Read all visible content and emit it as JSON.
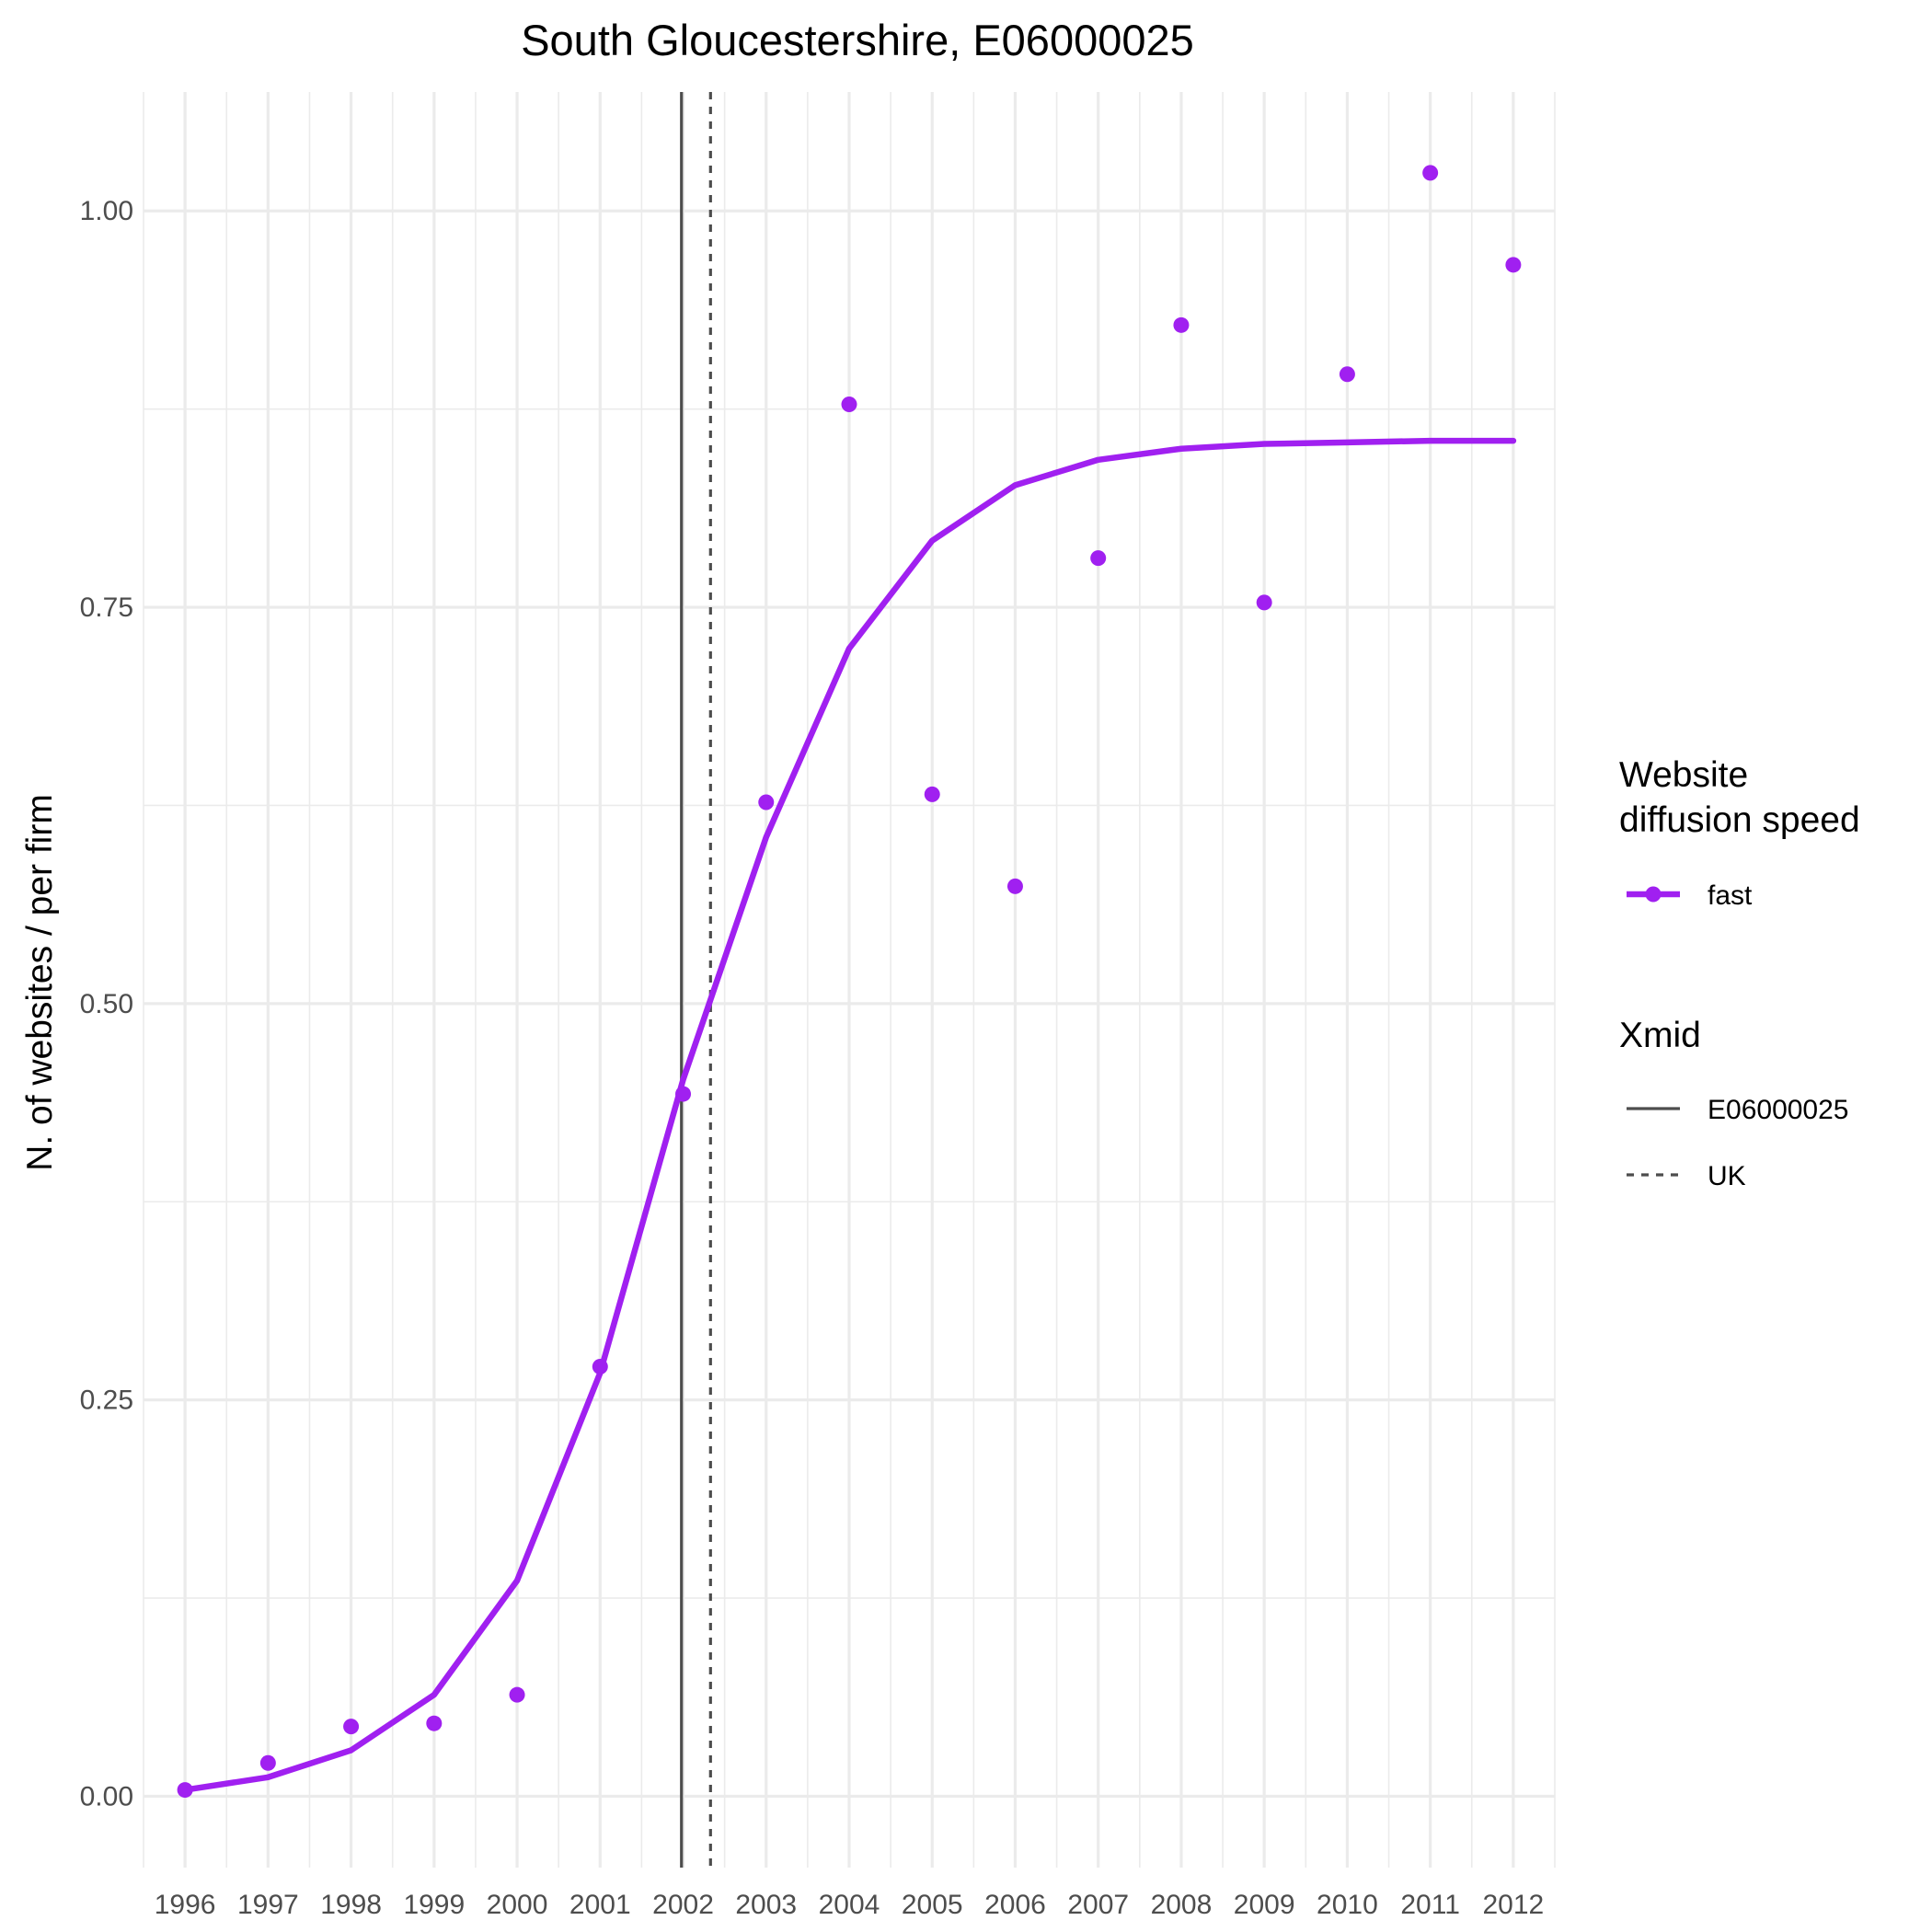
{
  "chart_data": {
    "type": "line",
    "title": "South Gloucestershire, E06000025",
    "xlabel": "",
    "ylabel": "N. of websites / per firm",
    "x": [
      1996,
      1997,
      1998,
      1999,
      2000,
      2001,
      2002,
      2003,
      2004,
      2005,
      2006,
      2007,
      2008,
      2009,
      2010,
      2011,
      2012
    ],
    "x_tick_labels": [
      "1996",
      "1997",
      "1998",
      "1999",
      "2000",
      "2001",
      "2002",
      "2003",
      "2004",
      "2005",
      "2006",
      "2007",
      "2008",
      "2009",
      "2010",
      "2011",
      "2012"
    ],
    "y_ticks": [
      0.0,
      0.25,
      0.5,
      0.75,
      1.0
    ],
    "y_tick_labels": [
      "0.00",
      "0.25",
      "0.50",
      "0.75",
      "1.00"
    ],
    "xlim": [
      1995.5,
      2012.5
    ],
    "ylim": [
      -0.045,
      1.075
    ],
    "grid": true,
    "series": [
      {
        "name": "fast",
        "color": "#a020f0",
        "points": [
          0.004,
          0.021,
          0.044,
          0.046,
          0.064,
          0.271,
          0.443,
          0.627,
          0.878,
          0.632,
          0.574,
          0.781,
          0.928,
          0.753,
          0.897,
          1.024,
          0.966
        ],
        "fitted": [
          0.004,
          0.012,
          0.029,
          0.064,
          0.136,
          0.267,
          0.452,
          0.605,
          0.724,
          0.792,
          0.827,
          0.843,
          0.85,
          0.853,
          0.854,
          0.855,
          0.855
        ]
      }
    ],
    "vlines": [
      {
        "name": "E06000025",
        "x": 2001.98,
        "style": "solid",
        "color": "#4d4d4d"
      },
      {
        "name": "UK",
        "x": 2002.33,
        "style": "dashed",
        "color": "#4d4d4d"
      }
    ],
    "legend": {
      "position": "right",
      "groups": [
        {
          "title": "Website\ndiffusion speed",
          "entries": [
            {
              "label": "fast",
              "kind": "line-point",
              "color": "#a020f0"
            }
          ]
        },
        {
          "title": "Xmid",
          "entries": [
            {
              "label": "E06000025",
              "kind": "solid",
              "color": "#4d4d4d"
            },
            {
              "label": "UK",
              "kind": "dashed",
              "color": "#4d4d4d"
            }
          ]
        }
      ]
    }
  }
}
